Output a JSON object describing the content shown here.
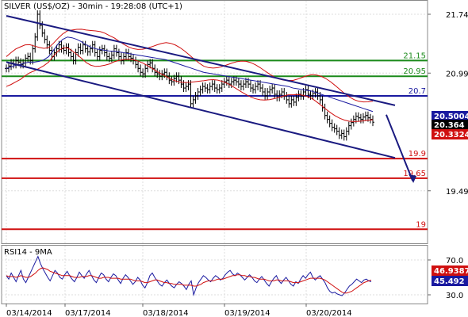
{
  "title": "SILVER (US$/OZ) - 30min - 19:28:08 (UTC+1)",
  "chart_data": [
    {
      "type": "line",
      "name": "price",
      "x_labels": [
        "03/14/2014",
        "03/17/2014",
        "03/18/2014",
        "03/19/2014",
        "03/20/2014"
      ],
      "y_ticks": [
        "21.74",
        "20.99",
        "19.49"
      ],
      "ylim": [
        19.0,
        22.0
      ],
      "grid": true,
      "levels": [
        {
          "value": 21.15,
          "label": "21.15",
          "color": "#1a8a1a"
        },
        {
          "value": 20.95,
          "label": "20.95",
          "color": "#1a8a1a"
        },
        {
          "value": 20.7,
          "label": "20.7",
          "color": "#1a1aa0"
        },
        {
          "value": 19.9,
          "label": "19.9",
          "color": "#d01010"
        },
        {
          "value": 19.65,
          "label": "19.65",
          "color": "#d01010"
        },
        {
          "value": 19.0,
          "label": "19",
          "color": "#d01010"
        }
      ],
      "price_boxes": [
        {
          "value": 20.5004,
          "label": "20.5004",
          "color": "#1a1aa0"
        },
        {
          "value": 20.364,
          "label": "20.364",
          "color": "#000000"
        },
        {
          "value": 20.3324,
          "label": "20.3324",
          "color": "#d01010"
        }
      ],
      "channel": {
        "upper": [
          [
            0,
            21.72
          ],
          [
            13.3,
            20.58
          ]
        ],
        "lower": [
          [
            0,
            21.13
          ],
          [
            13.3,
            19.91
          ]
        ]
      },
      "arrow": {
        "from": [
          13.0,
          20.46
        ],
        "to": [
          13.9,
          19.62
        ]
      },
      "series": [
        {
          "values": [
            21.05,
            21.08,
            21.12,
            21.1,
            21.15,
            21.13,
            21.1,
            21.12,
            21.18,
            21.2,
            21.15,
            21.3,
            21.45,
            21.74,
            21.6,
            21.5,
            21.42,
            21.35,
            21.28,
            21.2,
            21.25,
            21.3,
            21.35,
            21.3,
            21.28,
            21.32,
            21.25,
            21.2,
            21.15,
            21.25,
            21.32,
            21.28,
            21.35,
            21.3,
            21.26,
            21.3,
            21.35,
            21.25,
            21.2,
            21.28,
            21.3,
            21.25,
            21.2,
            21.18,
            21.22,
            21.3,
            21.25,
            21.2,
            21.15,
            21.2,
            21.25,
            21.2,
            21.18,
            21.15,
            21.1,
            21.05,
            21.0,
            20.98,
            21.05,
            21.1,
            21.12,
            21.05,
            21.0,
            20.98,
            20.95,
            20.98,
            21.0,
            20.95,
            20.9,
            20.88,
            20.92,
            20.95,
            20.9,
            20.85,
            20.8,
            20.82,
            20.85,
            20.6,
            20.65,
            20.7,
            20.75,
            20.78,
            20.82,
            20.8,
            20.78,
            20.82,
            20.85,
            20.8,
            20.78,
            20.8,
            20.85,
            20.88,
            20.9,
            20.85,
            20.88,
            20.9,
            20.88,
            20.85,
            20.82,
            20.85,
            20.88,
            20.85,
            20.8,
            20.78,
            20.82,
            20.85,
            20.8,
            20.75,
            20.7,
            20.75,
            20.78,
            20.8,
            20.72,
            20.68,
            20.72,
            20.75,
            20.7,
            20.65,
            20.6,
            20.65,
            20.62,
            20.68,
            20.72,
            20.7,
            20.75,
            20.78,
            20.72,
            20.7,
            20.73,
            20.75,
            20.7,
            20.65,
            20.55,
            20.45,
            20.4,
            20.35,
            20.3,
            20.28,
            20.25,
            20.2,
            20.22,
            20.18,
            20.25,
            20.32,
            20.36,
            20.4,
            20.44,
            20.42,
            20.4,
            20.43,
            20.45,
            20.42,
            20.4,
            20.364
          ]
        },
        {
          "values": [
            21.05,
            21.07,
            21.09,
            21.1,
            21.12,
            21.13,
            21.13,
            21.14,
            21.16,
            21.2,
            21.28,
            21.36,
            21.42,
            21.45,
            21.44,
            21.42,
            21.39,
            21.35,
            21.32,
            21.3,
            21.29,
            21.28,
            21.27,
            21.27,
            21.26,
            21.25,
            21.24,
            21.23,
            21.22,
            21.21,
            21.2,
            21.19,
            21.18,
            21.17,
            21.16,
            21.14,
            21.12,
            21.1,
            21.08,
            21.06,
            21.04,
            21.02,
            21.0,
            20.99,
            20.98,
            20.97,
            20.96,
            20.95,
            20.94,
            20.93,
            20.92,
            20.91,
            20.9,
            20.89,
            20.88,
            20.87,
            20.86,
            20.85,
            20.84,
            20.83,
            20.82,
            20.8,
            20.79,
            20.78,
            20.77,
            20.76,
            20.74,
            20.72,
            20.7,
            20.68,
            20.66,
            20.64,
            20.62,
            20.6,
            20.58,
            20.56,
            20.54,
            20.52,
            20.5
          ]
        }
      ]
    },
    {
      "type": "line",
      "name": "rsi",
      "title": "RSI14 - 9MA",
      "y_ticks": [
        "70.0",
        "30.0"
      ],
      "ylim": [
        20,
        80
      ],
      "price_boxes": [
        {
          "value": 46.9387,
          "label": "46.9387",
          "color": "#d01010"
        },
        {
          "value": 45.492,
          "label": "45.492",
          "color": "#1a1aa0"
        }
      ],
      "series": [
        {
          "values": [
            52,
            48,
            55,
            50,
            45,
            52,
            58,
            48,
            44,
            50,
            56,
            62,
            68,
            74,
            66,
            60,
            55,
            50,
            46,
            52,
            58,
            55,
            50,
            48,
            53,
            57,
            52,
            48,
            45,
            50,
            56,
            52,
            49,
            54,
            58,
            52,
            47,
            44,
            50,
            55,
            53,
            48,
            45,
            50,
            54,
            52,
            47,
            43,
            49,
            53,
            50,
            46,
            42,
            45,
            50,
            47,
            41,
            38,
            44,
            52,
            55,
            50,
            46,
            42,
            40,
            44,
            47,
            43,
            40,
            38,
            42,
            45,
            43,
            40,
            36,
            42,
            46,
            30,
            38,
            44,
            48,
            52,
            50,
            47,
            45,
            49,
            52,
            50,
            47,
            49,
            53,
            56,
            58,
            54,
            52,
            55,
            53,
            50,
            47,
            50,
            53,
            50,
            46,
            44,
            48,
            51,
            47,
            43,
            40,
            45,
            49,
            52,
            46,
            43,
            47,
            50,
            46,
            42,
            40,
            45,
            43,
            48,
            52,
            49,
            53,
            56,
            50,
            47,
            50,
            52,
            48,
            44,
            38,
            34,
            32,
            33,
            31,
            30,
            29,
            32,
            36,
            40,
            42,
            45,
            48,
            46,
            44,
            47,
            48,
            46,
            45
          ]
        },
        {
          "values": [
            52,
            51,
            51,
            51,
            50,
            51,
            52,
            51,
            50,
            50,
            51,
            53,
            55,
            58,
            60,
            61,
            60,
            59,
            57,
            56,
            55,
            54,
            53,
            52,
            52,
            52,
            52,
            51,
            50,
            50,
            50,
            51,
            51,
            51,
            52,
            52,
            51,
            50,
            49,
            49,
            50,
            50,
            50,
            49,
            49,
            49,
            49,
            48,
            48,
            48,
            48,
            48,
            47,
            46,
            46,
            46,
            45,
            44,
            44,
            45,
            46,
            47,
            47,
            46,
            45,
            44,
            44,
            43,
            43,
            42,
            42,
            42,
            42,
            41,
            41,
            41,
            41,
            40,
            40,
            41,
            42,
            44,
            45,
            46,
            46,
            46,
            47,
            48,
            48,
            48,
            49,
            50,
            51,
            52,
            52,
            53,
            53,
            52,
            52,
            51,
            51,
            50,
            50,
            49,
            48,
            48,
            48,
            47,
            46,
            46,
            46,
            47,
            47,
            46,
            46,
            46,
            46,
            45,
            44,
            44,
            44,
            45,
            46,
            47,
            48,
            49,
            49,
            49,
            49,
            49,
            48,
            47,
            45,
            43,
            41,
            39,
            37,
            35,
            33,
            32,
            32,
            33,
            34,
            36,
            38,
            40,
            42,
            44,
            45,
            46,
            47
          ]
        }
      ]
    }
  ]
}
